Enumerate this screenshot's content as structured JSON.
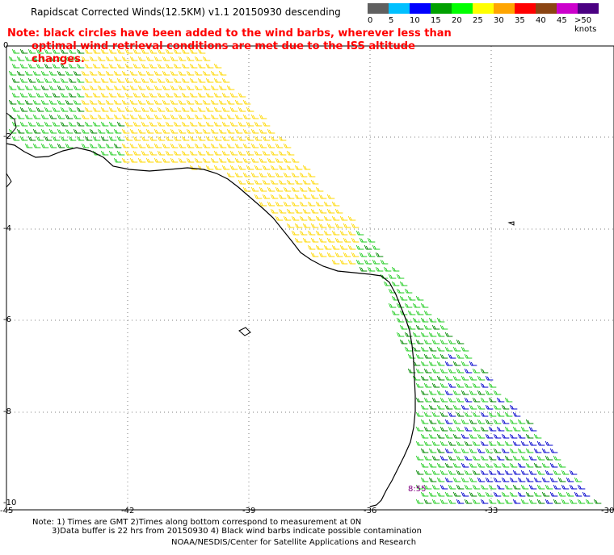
{
  "title": "Rapidscat Corrected Winds(12.5KM) v1.1 20150930 descending",
  "note": {
    "line1": "Note: black circles have been added to the wind barbs, wherever less than",
    "line2": "optimal wind retrieval conditions are met due to the ISS altitude changes."
  },
  "legend": {
    "labels": [
      "0",
      "5",
      "10",
      "15",
      "20",
      "25",
      "30",
      "35",
      "40",
      "45",
      ">50 knots"
    ],
    "colors": [
      "#606060",
      "#00c0ff",
      "#0000ff",
      "#00a000",
      "#00ff00",
      "#ffff00",
      "#ffa500",
      "#ff0000",
      "#8b4513",
      "#cc00cc",
      "#4b0082"
    ]
  },
  "axes": {
    "y_labels": [
      "0",
      "-2",
      "-4",
      "-6",
      "-8",
      "-10"
    ],
    "x_labels": [
      "-45",
      "-42",
      "-39",
      "-36",
      "-33",
      "-30"
    ]
  },
  "time_stamp": "8:55",
  "footer": {
    "line1": "Note: 1) Times are GMT 2)Times along bottom correspond to measurement at 0N",
    "line2": "3)Data buffer is 22 hrs from 20150930 4) Black wind barbs indicate possible contamination",
    "line3": "NOAA/NESDIS/Center for Satellite Applications and Research"
  },
  "colors": {
    "land_outline": "#000000",
    "grid": "#808080",
    "yellow": "#ffd800",
    "light_green": "#22cc22",
    "dark_green": "#008800",
    "blue": "#0000cc",
    "note": "#ff0000"
  }
}
